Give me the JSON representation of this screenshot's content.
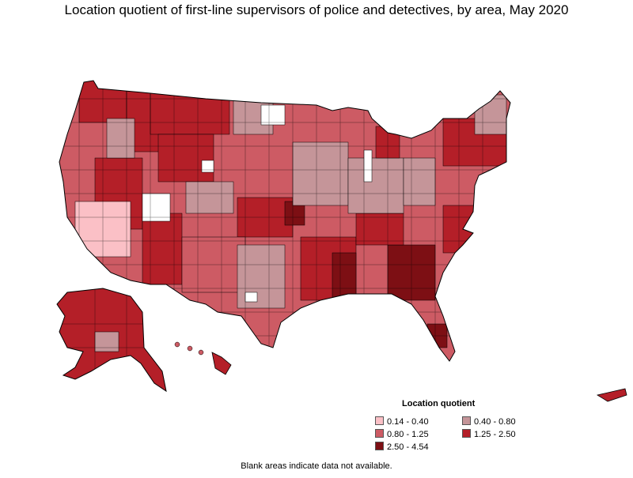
{
  "title": "Location quotient of first-line supervisors of police and detectives, by area, May 2020",
  "legend": {
    "title": "Location quotient",
    "items": [
      {
        "label": "0.14 - 0.40",
        "color": "#fbc0c6"
      },
      {
        "label": "0.40 - 0.80",
        "color": "#c59599"
      },
      {
        "label": "0.80 - 1.25",
        "color": "#cd5b64"
      },
      {
        "label": "1.25 - 2.50",
        "color": "#b41f28"
      },
      {
        "label": "2.50 - 4.54",
        "color": "#7d0f14"
      }
    ]
  },
  "footnote": "Blank areas indicate data not available.",
  "colors": {
    "border": "#000000",
    "no_data": "#ffffff"
  }
}
